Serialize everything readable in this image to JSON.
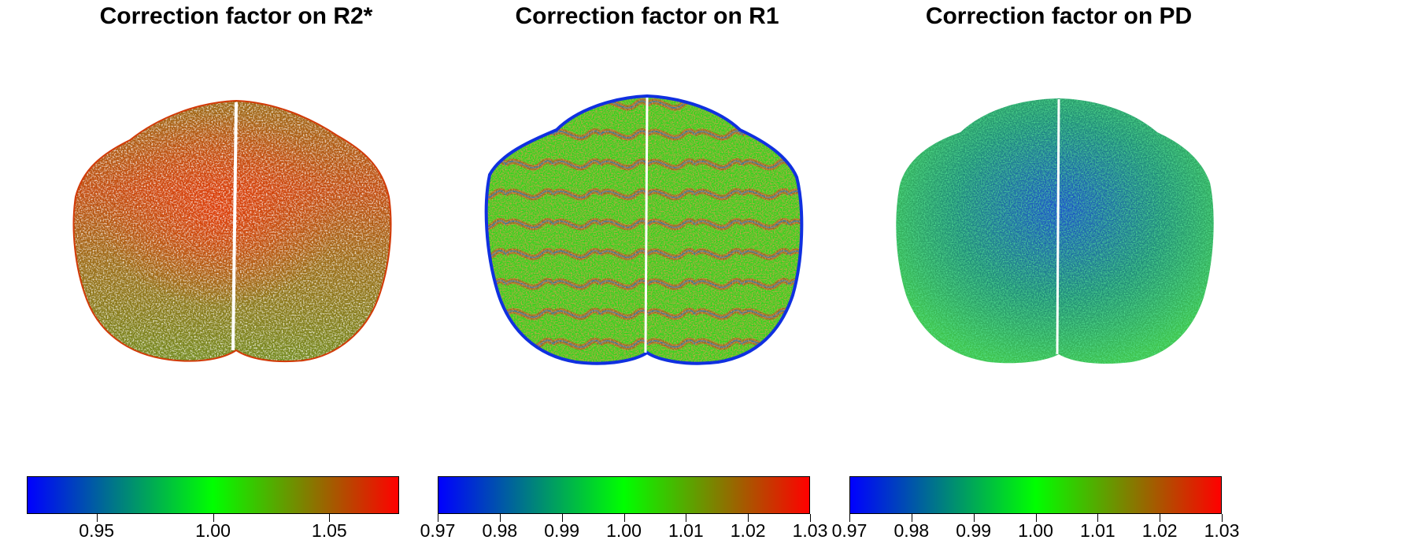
{
  "panels": [
    {
      "title": "Correction factor on R2*",
      "map_type": "r2star",
      "colorbar": {
        "colors": [
          "#0000ff",
          "#00ff00",
          "#ff0000"
        ],
        "range": [
          0.92,
          1.08
        ],
        "ticks": [
          {
            "value": 0.95,
            "label": "0.95"
          },
          {
            "value": 1.0,
            "label": "1.00"
          },
          {
            "value": 1.05,
            "label": "1.05"
          }
        ]
      }
    },
    {
      "title": "Correction factor on R1",
      "map_type": "r1",
      "colorbar": {
        "colors": [
          "#0000ff",
          "#00ff00",
          "#ff0000"
        ],
        "range": [
          0.97,
          1.03
        ],
        "ticks": [
          {
            "value": 0.97,
            "label": "0.97"
          },
          {
            "value": 0.98,
            "label": "0.98"
          },
          {
            "value": 0.99,
            "label": "0.99"
          },
          {
            "value": 1.0,
            "label": "1.00"
          },
          {
            "value": 1.01,
            "label": "1.01"
          },
          {
            "value": 1.02,
            "label": "1.02"
          },
          {
            "value": 1.03,
            "label": "1.03"
          }
        ]
      }
    },
    {
      "title": "Correction factor on PD",
      "map_type": "pd",
      "colorbar": {
        "colors": [
          "#0000ff",
          "#00ff00",
          "#ff0000"
        ],
        "range": [
          0.97,
          1.03
        ],
        "ticks": [
          {
            "value": 0.97,
            "label": "0.97"
          },
          {
            "value": 0.98,
            "label": "0.98"
          },
          {
            "value": 0.99,
            "label": "0.99"
          },
          {
            "value": 1.0,
            "label": "1.00"
          },
          {
            "value": 1.01,
            "label": "1.01"
          },
          {
            "value": 1.02,
            "label": "1.02"
          },
          {
            "value": 1.03,
            "label": "1.03"
          }
        ]
      }
    }
  ]
}
